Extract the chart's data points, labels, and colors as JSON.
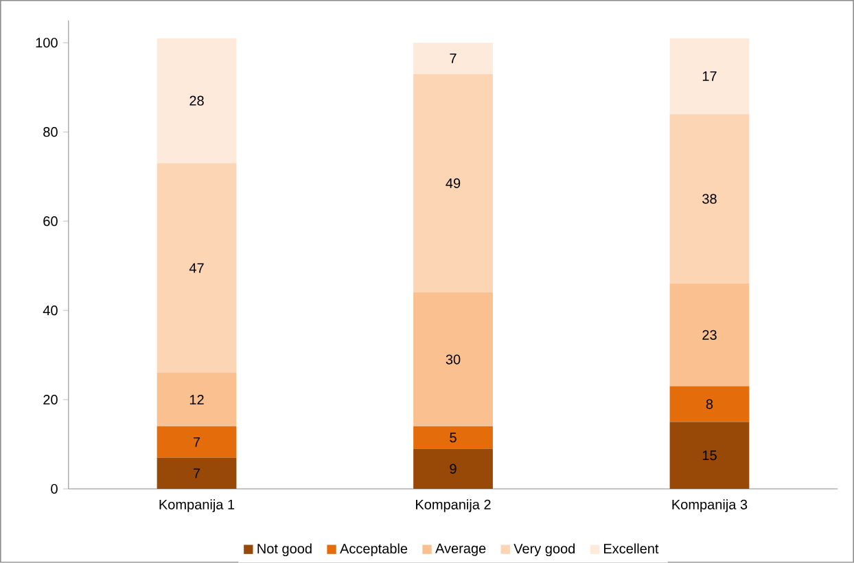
{
  "chart_data": {
    "type": "bar",
    "stacked": true,
    "data_labels": true,
    "legend": "bottom",
    "grid": false,
    "categories": [
      "Kompanija 1",
      "Kompanija 2",
      "Kompanija 3"
    ],
    "ylim": [
      0,
      105
    ],
    "yticks": [
      0,
      20,
      40,
      60,
      80,
      100
    ],
    "series": [
      {
        "name": "Not good",
        "color": "#984807",
        "values": [
          7,
          9,
          15
        ]
      },
      {
        "name": "Acceptable",
        "color": "#e46c0a",
        "values": [
          7,
          5,
          8
        ]
      },
      {
        "name": "Average",
        "color": "#fac090",
        "values": [
          12,
          30,
          23
        ]
      },
      {
        "name": "Very good",
        "color": "#fcd5b5",
        "values": [
          47,
          49,
          38
        ]
      },
      {
        "name": "Excellent",
        "color": "#fdeada",
        "values": [
          28,
          7,
          17
        ]
      }
    ]
  }
}
